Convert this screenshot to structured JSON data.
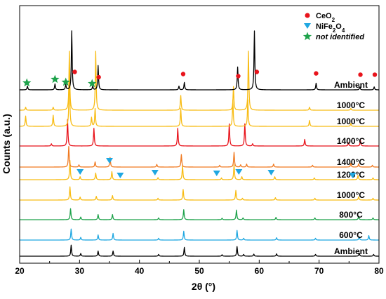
{
  "chart_data": {
    "type": "line",
    "xlabel": "2θ (°)",
    "ylabel": "Counts (a.u.)",
    "xlim": [
      20,
      80
    ],
    "xticks": [
      "20",
      "30",
      "40",
      "50",
      "60",
      "70",
      "80"
    ],
    "grid": false,
    "legend_position": "top-right",
    "legend": [
      {
        "marker": "circle",
        "color": "#e8141c",
        "text": "CeO",
        "sub": "2",
        "tail": ""
      },
      {
        "marker": "triangle-down",
        "color": "#1fa7e1",
        "text": "NiFe",
        "sub": "2",
        "tail": "O",
        "sub2": "4"
      },
      {
        "marker": "star",
        "color": "#1ea24b",
        "text": "not identified",
        "italic": true
      }
    ],
    "series": [
      {
        "name": "Ambient",
        "color": "#000000",
        "baseline": 0,
        "label_pos": 0,
        "peaks": [
          [
            28.6,
            0.75
          ],
          [
            30.2,
            0.18
          ],
          [
            33.1,
            0.35
          ],
          [
            35.6,
            0.35
          ],
          [
            43.2,
            0.12
          ],
          [
            47.5,
            0.6
          ],
          [
            53.8,
            0.1
          ],
          [
            56.3,
            0.65
          ],
          [
            57.4,
            0.12
          ],
          [
            59.1,
            0.14
          ],
          [
            62.9,
            0.16
          ],
          [
            69.4,
            0.12
          ],
          [
            76.7,
            0.22
          ],
          [
            79.1,
            0.12
          ]
        ]
      },
      {
        "name": "600°C",
        "color": "#1fa7e1",
        "baseline": 1,
        "label_pos": 1,
        "peaks": [
          [
            28.6,
            0.75
          ],
          [
            30.2,
            0.18
          ],
          [
            33.1,
            0.35
          ],
          [
            35.6,
            0.45
          ],
          [
            43.2,
            0.12
          ],
          [
            47.4,
            0.6
          ],
          [
            56.3,
            0.65
          ],
          [
            57.4,
            0.12
          ],
          [
            62.9,
            0.16
          ],
          [
            69.4,
            0.12
          ],
          [
            76.7,
            0.22
          ],
          [
            78.3,
            0.3
          ]
        ]
      },
      {
        "name": "800°C",
        "color": "#1ea24b",
        "baseline": 2,
        "label_pos": 2,
        "peaks": [
          [
            28.5,
            0.75
          ],
          [
            30.2,
            0.18
          ],
          [
            33.1,
            0.35
          ],
          [
            35.5,
            0.35
          ],
          [
            43.2,
            0.12
          ],
          [
            47.4,
            0.68
          ],
          [
            53.8,
            0.1
          ],
          [
            56.2,
            0.65
          ],
          [
            57.3,
            0.12
          ],
          [
            62.8,
            0.16
          ],
          [
            69.3,
            0.12
          ],
          [
            76.6,
            0.22
          ],
          [
            79.0,
            0.12
          ]
        ]
      },
      {
        "name": "1000°C",
        "color": "#f8bc14",
        "baseline": 3,
        "label_pos": 3,
        "peaks": [
          [
            28.4,
            0.9
          ],
          [
            30.1,
            0.2
          ],
          [
            32.8,
            0.25
          ],
          [
            35.5,
            0.3
          ],
          [
            43.1,
            0.12
          ],
          [
            47.3,
            0.72
          ],
          [
            56.1,
            0.65
          ],
          [
            57.2,
            0.12
          ],
          [
            62.7,
            0.16
          ],
          [
            69.3,
            0.12
          ],
          [
            76.6,
            0.22
          ],
          [
            79.0,
            0.12
          ]
        ]
      },
      {
        "name": "1200°C",
        "color": "#f8bc14",
        "baseline": 4,
        "label_pos": 4,
        "peaks": [
          [
            28.4,
            1.3
          ],
          [
            30.1,
            0.2
          ],
          [
            32.7,
            0.45
          ],
          [
            35.4,
            0.55
          ],
          [
            43.1,
            0.14
          ],
          [
            47.2,
            0.95
          ],
          [
            53.7,
            0.12
          ],
          [
            55.8,
            1.0
          ],
          [
            57.1,
            0.2
          ],
          [
            62.6,
            0.2
          ],
          [
            69.2,
            0.12
          ],
          [
            76.5,
            0.3
          ],
          [
            79.0,
            0.12
          ]
        ]
      },
      {
        "name": "1400°C",
        "color": "#f07a22",
        "baseline": 5,
        "label_pos": 5,
        "peaks": [
          [
            28.2,
            1.4
          ],
          [
            29.9,
            0.15
          ],
          [
            32.6,
            0.35
          ],
          [
            35.1,
            0.65
          ],
          [
            42.9,
            0.18
          ],
          [
            47.0,
            0.85
          ],
          [
            53.4,
            0.12
          ],
          [
            55.8,
            1.0
          ],
          [
            56.9,
            0.15
          ],
          [
            57.9,
            0.2
          ],
          [
            62.4,
            0.2
          ],
          [
            68.9,
            0.12
          ],
          [
            75.3,
            0.25
          ],
          [
            76.6,
            0.22
          ],
          [
            78.9,
            0.12
          ]
        ]
      },
      {
        "name": "1400°C",
        "color": "#e8141c",
        "baseline": 6,
        "label_pos": 6,
        "peaks": [
          [
            28.0,
            1.8
          ],
          [
            25.3,
            0.15
          ],
          [
            32.4,
            1.2
          ],
          [
            46.4,
            1.2
          ],
          [
            55.0,
            1.5
          ],
          [
            57.6,
            1.5
          ],
          [
            58.9,
            0.15
          ],
          [
            67.6,
            0.45
          ],
          [
            74.9,
            0.22
          ],
          [
            76.9,
            0.38
          ]
        ]
      },
      {
        "name": "1000°C",
        "color": "#f8bc14",
        "baseline": 7,
        "label_pos": 7,
        "peaks": [
          [
            21.0,
            0.7
          ],
          [
            25.6,
            0.75
          ],
          [
            28.3,
            4.0
          ],
          [
            32.0,
            0.6
          ],
          [
            32.6,
            1.2
          ],
          [
            46.9,
            1.2
          ],
          [
            55.6,
            1.8
          ],
          [
            58.1,
            1.8
          ],
          [
            68.4,
            0.4
          ],
          [
            75.3,
            0.2
          ]
        ]
      },
      {
        "name": "1000°C",
        "color": "#f8bc14",
        "baseline": 8,
        "label_pos": 8,
        "peaks": [
          [
            21.0,
            0.2
          ],
          [
            25.6,
            0.2
          ],
          [
            28.3,
            4.0
          ],
          [
            32.7,
            4.0
          ],
          [
            46.9,
            1.0
          ],
          [
            55.7,
            1.6
          ],
          [
            58.2,
            4.0
          ],
          [
            68.4,
            0.2
          ],
          [
            75.3,
            0.12
          ]
        ]
      },
      {
        "name": "Ambient",
        "color": "#000000",
        "baseline": 9,
        "label_pos": 9,
        "peaks": [
          [
            21.3,
            0.25
          ],
          [
            25.9,
            0.4
          ],
          [
            27.7,
            0.35
          ],
          [
            28.7,
            4.0
          ],
          [
            32.2,
            0.25
          ],
          [
            33.1,
            1.65
          ],
          [
            46.6,
            0.25
          ],
          [
            47.5,
            0.5
          ],
          [
            56.4,
            1.55
          ],
          [
            59.2,
            4.0
          ],
          [
            69.5,
            0.45
          ],
          [
            76.8,
            0.2
          ],
          [
            79.2,
            0.2
          ]
        ]
      }
    ],
    "annotations": {
      "ceo2": [
        [
          29.2,
          2.65
        ],
        [
          33.2,
          2.4
        ],
        [
          47.3,
          2.55
        ],
        [
          56.5,
          2.45
        ],
        [
          59.6,
          2.65
        ],
        [
          69.5,
          2.58
        ],
        [
          76.9,
          2.52
        ],
        [
          79.3,
          2.52
        ]
      ],
      "nife2o4": [
        [
          30.1,
          5.55
        ],
        [
          35.0,
          5.95
        ],
        [
          36.8,
          5.48
        ],
        [
          42.6,
          5.55
        ],
        [
          52.9,
          5.52
        ],
        [
          56.6,
          5.55
        ],
        [
          62.0,
          5.55
        ],
        [
          75.6,
          5.48
        ]
      ],
      "unidentified": [
        [
          21.2,
          2.36
        ],
        [
          25.9,
          2.1
        ],
        [
          27.7,
          2.2
        ],
        [
          32.1,
          2.4
        ]
      ]
    }
  }
}
